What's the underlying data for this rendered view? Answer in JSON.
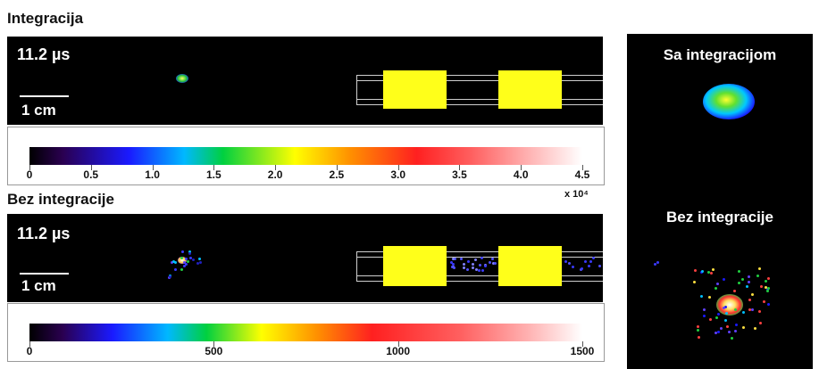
{
  "top": {
    "title": "Integracija",
    "time": "11.2 µs",
    "scale": "1 cm",
    "colorbar_ticks": [
      "0",
      "0.5",
      "1.0",
      "1.5",
      "2.0",
      "2.5",
      "3.0",
      "3.5",
      "4.0",
      "4.5"
    ],
    "multiplier": "x 10⁴"
  },
  "bottom": {
    "title": "Bez integracije",
    "time": "11.2 µs",
    "scale": "1 cm",
    "colorbar_ticks": [
      "0",
      "500",
      "1000",
      "1500"
    ]
  },
  "side": {
    "label_top": "Sa integracijom",
    "label_bottom": "Bez integracije"
  },
  "colors": {
    "panel_background": "#000000",
    "electrode": "#ffff1a"
  }
}
